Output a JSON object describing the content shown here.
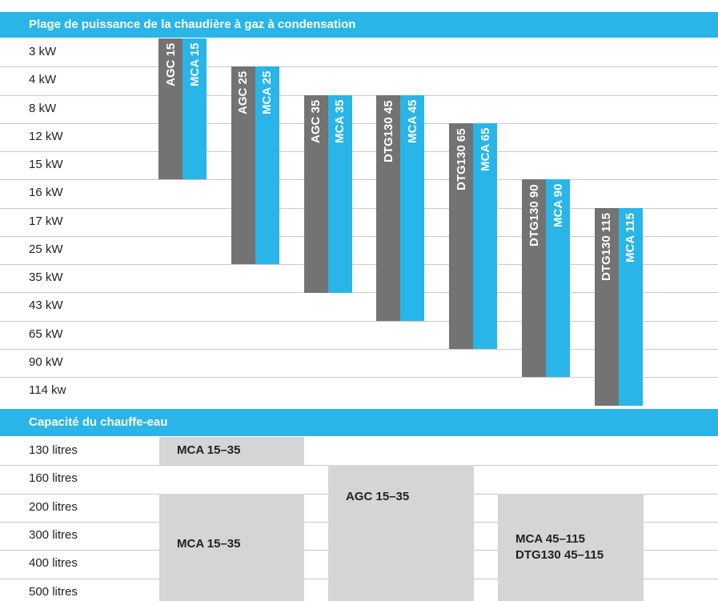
{
  "colors": {
    "header": "#29b5e8",
    "grey_bar": "#737374",
    "blue_bar": "#29b5e8",
    "tank_box": "#d5d5d6"
  },
  "chart_data": [
    {
      "type": "bar",
      "title": "Plage de puissance de la chaudière à gaz à condensation",
      "rows": [
        "3 kW",
        "4 kW",
        "8 kW",
        "12 kW",
        "15 kW",
        "16 kW",
        "17 kW",
        "25 kW",
        "35 kW",
        "43 kW",
        "65 kW",
        "90 kW",
        "114 kw"
      ],
      "series": [
        {
          "name": "AGC 15",
          "color": "grey",
          "start_row": 0,
          "end_row": 4
        },
        {
          "name": "MCA 15",
          "color": "blue",
          "start_row": 0,
          "end_row": 4
        },
        {
          "name": "AGC 25",
          "color": "grey",
          "start_row": 1,
          "end_row": 7
        },
        {
          "name": "MCA 25",
          "color": "blue",
          "start_row": 1,
          "end_row": 7
        },
        {
          "name": "AGC 35",
          "color": "grey",
          "start_row": 2,
          "end_row": 8
        },
        {
          "name": "MCA 35",
          "color": "blue",
          "start_row": 2,
          "end_row": 8
        },
        {
          "name": "DTG130 45",
          "color": "grey",
          "start_row": 2,
          "end_row": 9
        },
        {
          "name": "MCA 45",
          "color": "blue",
          "start_row": 2,
          "end_row": 9
        },
        {
          "name": "DTG130 65",
          "color": "grey",
          "start_row": 3,
          "end_row": 10
        },
        {
          "name": "MCA 65",
          "color": "blue",
          "start_row": 3,
          "end_row": 10
        },
        {
          "name": "DTG130 90",
          "color": "grey",
          "start_row": 5,
          "end_row": 11
        },
        {
          "name": "MCA 90",
          "color": "blue",
          "start_row": 5,
          "end_row": 11
        },
        {
          "name": "DTG130 115",
          "color": "grey",
          "start_row": 6,
          "end_row": 12
        },
        {
          "name": "MCA 115",
          "color": "blue",
          "start_row": 6,
          "end_row": 12
        }
      ]
    },
    {
      "type": "table",
      "title": "Capacité du chauffe-eau",
      "rows": [
        "130 litres",
        "160 litres",
        "200 litres",
        "300 litres",
        "400 litres",
        "500 litres"
      ],
      "entries": [
        {
          "lines": [
            "MCA 15–35"
          ],
          "start_row": 0,
          "end_row": 0
        },
        {
          "lines": [
            "MCA 15–35"
          ],
          "start_row": 2,
          "end_row": 5
        },
        {
          "lines": [
            "AGC 15–35"
          ],
          "start_row": 1,
          "end_row": 5
        },
        {
          "lines": [
            "MCA 45–115",
            "DTG130 45–115"
          ],
          "start_row": 2,
          "end_row": 5
        }
      ]
    }
  ]
}
